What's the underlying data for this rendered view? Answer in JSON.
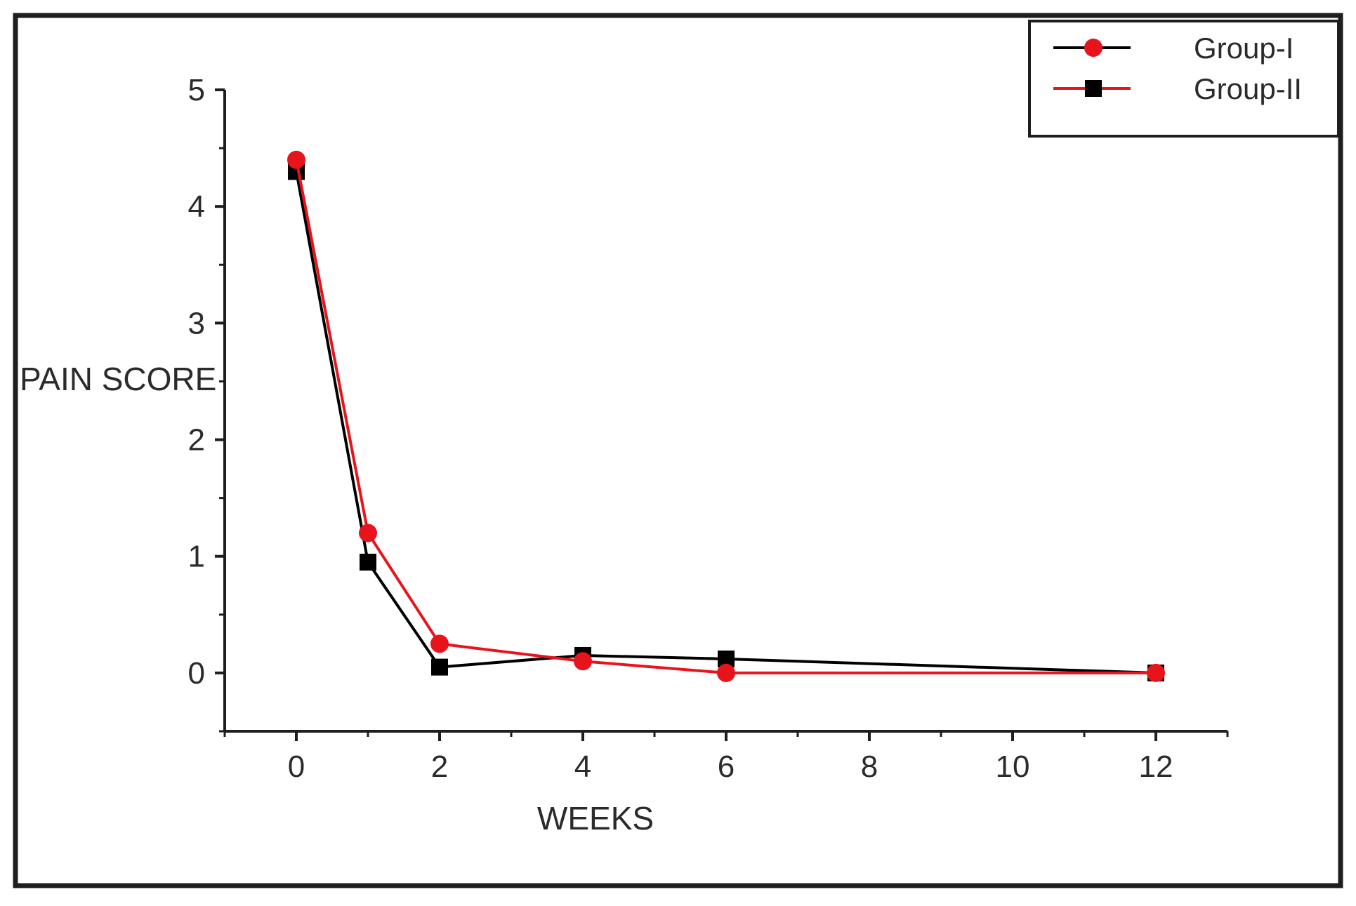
{
  "chart_data": {
    "type": "line",
    "title": "",
    "xlabel": "WEEKS",
    "ylabel": "PAIN SCORE",
    "xlim": [
      -1,
      13
    ],
    "ylim": [
      -0.5,
      5
    ],
    "x_ticks": [
      0,
      2,
      4,
      6,
      8,
      10,
      12
    ],
    "x_tick_labels": [
      "0",
      "2",
      "4",
      "6",
      "8",
      "10",
      "12"
    ],
    "y_ticks": [
      0,
      1,
      2,
      3,
      4,
      5
    ],
    "y_tick_labels": [
      "0",
      "1",
      "2",
      "3",
      "4",
      "5"
    ],
    "grid": false,
    "legend_position": "top-right",
    "series": [
      {
        "name": "Group-I",
        "marker": "circle",
        "color": "#e8141c",
        "legend_line_color": "#000000",
        "points": [
          [
            0,
            4.4
          ],
          [
            1,
            1.2
          ],
          [
            2,
            0.25
          ],
          [
            4,
            0.1
          ],
          [
            6,
            0.0
          ],
          [
            12,
            0.0
          ]
        ]
      },
      {
        "name": "Group-II",
        "marker": "square",
        "color": "#000000",
        "legend_line_color": "#e8141c",
        "points": [
          [
            0,
            4.3
          ],
          [
            1,
            0.95
          ],
          [
            2,
            0.05
          ],
          [
            4,
            0.15
          ],
          [
            6,
            0.12
          ],
          [
            12,
            0.0
          ]
        ]
      }
    ]
  }
}
